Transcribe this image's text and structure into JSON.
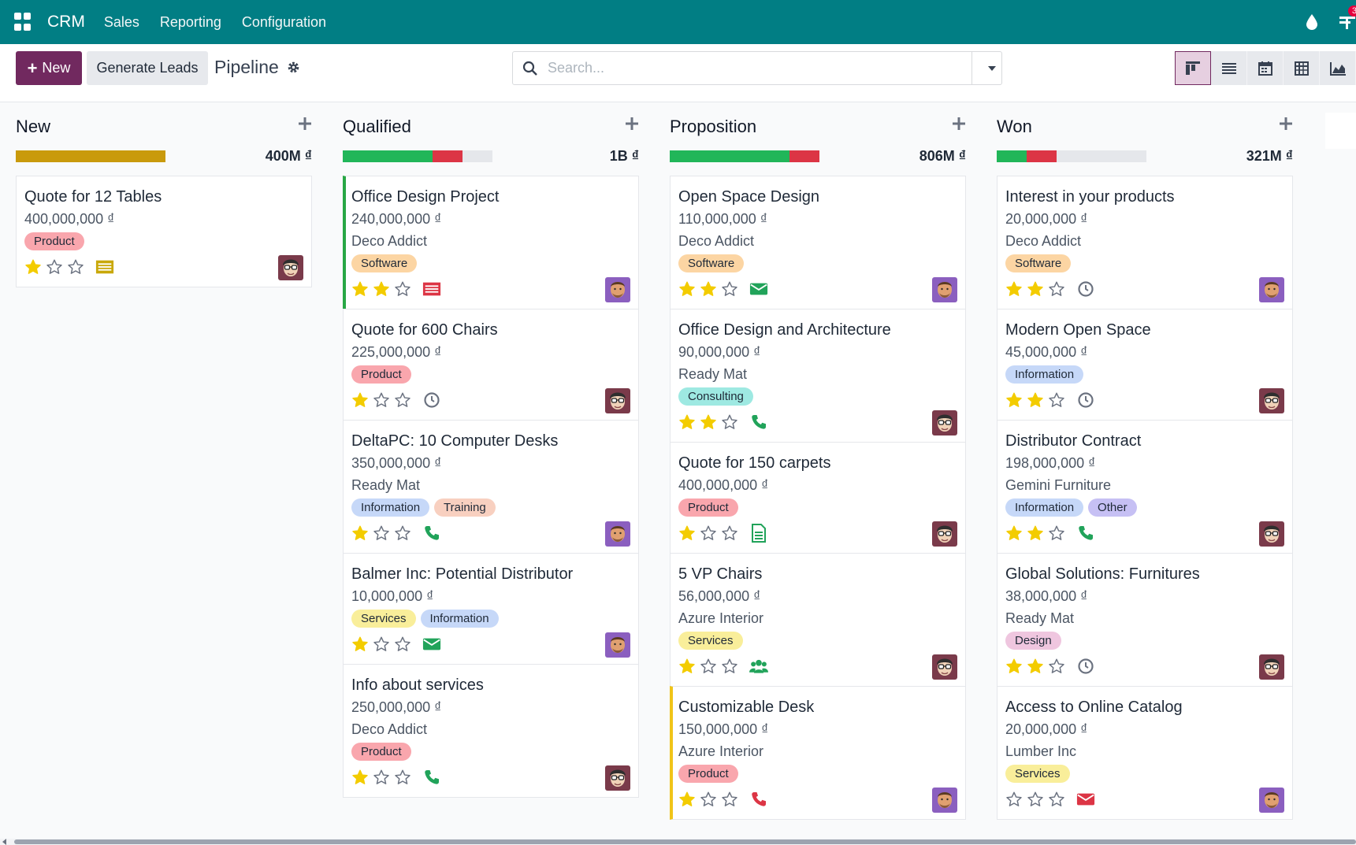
{
  "navbar": {
    "brand": "CRM",
    "menu": [
      "Sales",
      "Reporting",
      "Configuration"
    ],
    "activity_count": "3"
  },
  "control": {
    "new_label": "New",
    "generate_label": "Generate Leads",
    "breadcrumb": "Pipeline",
    "search_placeholder": "Search..."
  },
  "columns": [
    {
      "title": "New",
      "total": "400M ₫",
      "progress": [
        {
          "color": "#c99a0c",
          "fraction": 1.0
        }
      ],
      "cards": [
        {
          "title": "Quote for 12 Tables",
          "amount": "400,000,000 ₫",
          "customer": "",
          "tags": [
            {
              "label": "Product",
              "kind": "product"
            }
          ],
          "stars": 1,
          "activity": "list",
          "avatar": "glasses",
          "border": ""
        }
      ]
    },
    {
      "title": "Qualified",
      "total": "1B ₫",
      "progress": [
        {
          "color": "#21b659",
          "fraction": 0.6
        },
        {
          "color": "#dc3545",
          "fraction": 0.2
        }
      ],
      "cards": [
        {
          "title": "Office Design Project",
          "amount": "240,000,000 ₫",
          "customer": "Deco Addict",
          "tags": [
            {
              "label": "Software",
              "kind": "software"
            }
          ],
          "stars": 2,
          "activity": "list-red",
          "avatar": "man",
          "border": "green"
        },
        {
          "title": "Quote for 600 Chairs",
          "amount": "225,000,000 ₫",
          "customer": "",
          "tags": [
            {
              "label": "Product",
              "kind": "product"
            }
          ],
          "stars": 1,
          "activity": "clock",
          "avatar": "glasses",
          "border": ""
        },
        {
          "title": "DeltaPC: 10 Computer Desks",
          "amount": "350,000,000 ₫",
          "customer": "Ready Mat",
          "tags": [
            {
              "label": "Information",
              "kind": "information"
            },
            {
              "label": "Training",
              "kind": "training"
            }
          ],
          "stars": 1,
          "activity": "phone",
          "avatar": "man",
          "border": ""
        },
        {
          "title": "Balmer Inc: Potential Distributor",
          "amount": "10,000,000 ₫",
          "customer": "",
          "tags": [
            {
              "label": "Services",
              "kind": "services"
            },
            {
              "label": "Information",
              "kind": "information"
            }
          ],
          "stars": 1,
          "activity": "email",
          "avatar": "man",
          "border": ""
        },
        {
          "title": "Info about services",
          "amount": "250,000,000 ₫",
          "customer": "Deco Addict",
          "tags": [
            {
              "label": "Product",
              "kind": "product"
            }
          ],
          "stars": 1,
          "activity": "phone",
          "avatar": "glasses",
          "border": ""
        }
      ]
    },
    {
      "title": "Proposition",
      "total": "806M ₫",
      "progress": [
        {
          "color": "#21b659",
          "fraction": 0.8
        },
        {
          "color": "#dc3545",
          "fraction": 0.2
        }
      ],
      "cards": [
        {
          "title": "Open Space Design",
          "amount": "110,000,000 ₫",
          "customer": "Deco Addict",
          "tags": [
            {
              "label": "Software",
              "kind": "software"
            }
          ],
          "stars": 2,
          "activity": "email",
          "avatar": "man",
          "border": ""
        },
        {
          "title": "Office Design and Architecture",
          "amount": "90,000,000 ₫",
          "customer": "Ready Mat",
          "tags": [
            {
              "label": "Consulting",
              "kind": "consulting"
            }
          ],
          "stars": 2,
          "activity": "phone",
          "avatar": "glasses",
          "border": ""
        },
        {
          "title": "Quote for 150 carpets",
          "amount": "400,000,000 ₫",
          "customer": "",
          "tags": [
            {
              "label": "Product",
              "kind": "product"
            }
          ],
          "stars": 1,
          "activity": "doc",
          "avatar": "glasses",
          "border": ""
        },
        {
          "title": "5 VP Chairs",
          "amount": "56,000,000 ₫",
          "customer": "Azure Interior",
          "tags": [
            {
              "label": "Services",
              "kind": "services"
            }
          ],
          "stars": 1,
          "activity": "users",
          "avatar": "glasses",
          "border": ""
        },
        {
          "title": "Customizable Desk",
          "amount": "150,000,000 ₫",
          "customer": "Azure Interior",
          "tags": [
            {
              "label": "Product",
              "kind": "product"
            }
          ],
          "stars": 1,
          "activity": "phone-red",
          "avatar": "man",
          "border": "yellow"
        }
      ]
    },
    {
      "title": "Won",
      "total": "321M ₫",
      "progress": [
        {
          "color": "#21b659",
          "fraction": 0.2
        },
        {
          "color": "#dc3545",
          "fraction": 0.2
        }
      ],
      "cards": [
        {
          "title": "Interest in your products",
          "amount": "20,000,000 ₫",
          "customer": "Deco Addict",
          "tags": [
            {
              "label": "Software",
              "kind": "software"
            }
          ],
          "stars": 2,
          "activity": "clock",
          "avatar": "man",
          "border": ""
        },
        {
          "title": "Modern Open Space",
          "amount": "45,000,000 ₫",
          "customer": "",
          "tags": [
            {
              "label": "Information",
              "kind": "information"
            }
          ],
          "stars": 2,
          "activity": "clock",
          "avatar": "glasses",
          "border": ""
        },
        {
          "title": "Distributor Contract",
          "amount": "198,000,000 ₫",
          "customer": "Gemini Furniture",
          "tags": [
            {
              "label": "Information",
              "kind": "information"
            },
            {
              "label": "Other",
              "kind": "other"
            }
          ],
          "stars": 2,
          "activity": "phone",
          "avatar": "glasses",
          "border": ""
        },
        {
          "title": "Global Solutions: Furnitures",
          "amount": "38,000,000 ₫",
          "customer": "Ready Mat",
          "tags": [
            {
              "label": "Design",
              "kind": "design"
            }
          ],
          "stars": 2,
          "activity": "clock",
          "avatar": "glasses",
          "border": ""
        },
        {
          "title": "Access to Online Catalog",
          "amount": "20,000,000 ₫",
          "customer": "Lumber Inc",
          "tags": [
            {
              "label": "Services",
              "kind": "services"
            }
          ],
          "stars": 0,
          "activity": "email-red",
          "avatar": "man",
          "border": ""
        }
      ]
    }
  ],
  "colors": {
    "navbar": "#017e84",
    "primary": "#71295f",
    "star": "#f3cc00"
  }
}
